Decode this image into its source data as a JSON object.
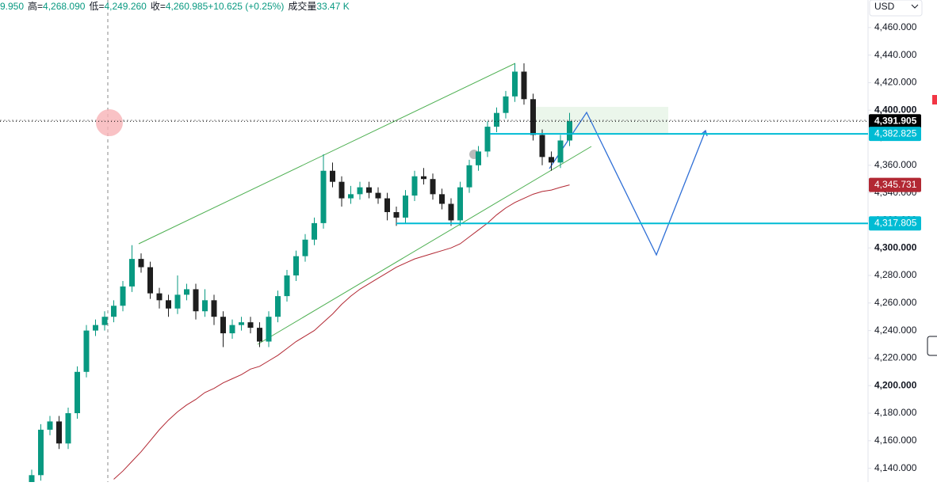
{
  "chart_data": {
    "type": "candlestick",
    "header": [
      {
        "text": "9.950",
        "color": "#089981"
      },
      {
        "text": "高=",
        "color": "#131722"
      },
      {
        "text": "4,268.090",
        "color": "#089981"
      },
      {
        "text": "低=",
        "color": "#131722"
      },
      {
        "text": "4,249.260",
        "color": "#089981"
      },
      {
        "text": "收=",
        "color": "#131722"
      },
      {
        "text": "4,260.985",
        "color": "#089981"
      },
      {
        "text": "+10.625 (+0.25%)",
        "color": "#089981"
      },
      {
        "text": "成交量",
        "color": "#131722"
      },
      {
        "text": "33.47 K",
        "color": "#089981"
      }
    ],
    "currency": "USD",
    "up_color": "#089981",
    "down_color": "#1e1e1e",
    "open": [
      4128,
      4135,
      4168,
      4174,
      4158,
      4180,
      4210,
      4240,
      4244,
      4250,
      4258,
      4272,
      4292,
      4286,
      4267,
      4262,
      4256,
      4266,
      4270,
      4254,
      4262,
      4250,
      4238,
      4244,
      4246,
      4242,
      4232,
      4250,
      4265,
      4280,
      4294,
      4306,
      4318,
      4356,
      4348,
      4336,
      4339,
      4344,
      4340,
      4336,
      4326,
      4322,
      4338,
      4352,
      4350,
      4339,
      4332,
      4320,
      4344,
      4360,
      4370,
      4388,
      4398,
      4410,
      4428,
      4408,
      4382,
      4366,
      4362,
      4378
    ],
    "high": [
      4139,
      4172,
      4178,
      4178,
      4184,
      4214,
      4244,
      4248,
      4254,
      4262,
      4276,
      4302,
      4296,
      4290,
      4271,
      4266,
      4280,
      4274,
      4274,
      4270,
      4266,
      4254,
      4248,
      4250,
      4250,
      4246,
      4254,
      4269,
      4284,
      4298,
      4310,
      4322,
      4368,
      4362,
      4352,
      4345,
      4348,
      4348,
      4344,
      4340,
      4330,
      4342,
      4356,
      4358,
      4354,
      4343,
      4336,
      4348,
      4364,
      4374,
      4392,
      4402,
      4414,
      4434,
      4434,
      4412,
      4386,
      4370,
      4382,
      4398
    ],
    "low": [
      4124,
      4131,
      4164,
      4154,
      4154,
      4176,
      4206,
      4236,
      4240,
      4246,
      4254,
      4268,
      4282,
      4263,
      4256,
      4250,
      4252,
      4262,
      4248,
      4250,
      4244,
      4228,
      4234,
      4240,
      4238,
      4228,
      4228,
      4246,
      4261,
      4276,
      4290,
      4302,
      4314,
      4344,
      4330,
      4332,
      4335,
      4336,
      4332,
      4320,
      4316,
      4318,
      4334,
      4346,
      4335,
      4328,
      4316,
      4316,
      4340,
      4356,
      4366,
      4384,
      4394,
      4406,
      4404,
      4378,
      4360,
      4356,
      4358,
      4374
    ],
    "close": [
      4135,
      4168,
      4174,
      4158,
      4180,
      4210,
      4240,
      4244,
      4250,
      4258,
      4272,
      4292,
      4286,
      4267,
      4262,
      4256,
      4266,
      4270,
      4254,
      4262,
      4250,
      4238,
      4244,
      4246,
      4242,
      4232,
      4250,
      4265,
      4280,
      4294,
      4306,
      4318,
      4356,
      4348,
      4336,
      4339,
      4344,
      4340,
      4336,
      4326,
      4322,
      4338,
      4352,
      4350,
      4339,
      4332,
      4320,
      4344,
      4360,
      4370,
      4388,
      4398,
      4410,
      4428,
      4408,
      4382,
      4366,
      4362,
      4378,
      4392
    ],
    "ma": {
      "color": "#b22833",
      "values": [
        null,
        null,
        null,
        null,
        null,
        null,
        null,
        null,
        null,
        4132,
        4138,
        4145,
        4152,
        4160,
        4168,
        4175,
        4181,
        4186,
        4190,
        4195,
        4198,
        4202,
        4205,
        4208,
        4212,
        4214,
        4218,
        4222,
        4227,
        4232,
        4236,
        4240,
        4246,
        4252,
        4259,
        4265,
        4270,
        4274,
        4278,
        4282,
        4286,
        4289,
        4292,
        4294,
        4296,
        4298,
        4300,
        4303,
        4308,
        4313,
        4318,
        4324,
        4329,
        4333,
        4336,
        4339,
        4341,
        4342,
        4344,
        4345.731
      ]
    },
    "ylim": [
      4130,
      4480
    ],
    "yticks": [
      {
        "value": 4140,
        "label": "4,140.000"
      },
      {
        "value": 4160,
        "label": "4,160.000"
      },
      {
        "value": 4180,
        "label": "4,180.000"
      },
      {
        "value": 4200,
        "label": "4,200.000"
      },
      {
        "value": 4220,
        "label": "4,220.000"
      },
      {
        "value": 4240,
        "label": "4,240.000"
      },
      {
        "value": 4260,
        "label": "4,260.000"
      },
      {
        "value": 4280,
        "label": "4,280.000"
      },
      {
        "value": 4300,
        "label": "4,300.000"
      },
      {
        "value": 4320,
        "label": "4,320.000"
      },
      {
        "value": 4340,
        "label": "4,340.000"
      },
      {
        "value": 4360,
        "label": "4,360.000"
      },
      {
        "value": 4380,
        "label": "4,380.000"
      },
      {
        "value": 4400,
        "label": "4,400.000"
      },
      {
        "value": 4420,
        "label": "4,420.000"
      },
      {
        "value": 4440,
        "label": "4,440.000"
      },
      {
        "value": 4460,
        "label": "4,460.000"
      }
    ],
    "price_labels": [
      {
        "value": 4391.905,
        "label": "4,391.905",
        "color": "#000000"
      },
      {
        "value": 4382.825,
        "label": "4,382.825",
        "color": "#00bcd4"
      },
      {
        "value": 4345.731,
        "label": "4,345.731",
        "color": "#b22833"
      },
      {
        "value": 4317.805,
        "label": "4,317.805",
        "color": "#00bcd4"
      }
    ]
  }
}
